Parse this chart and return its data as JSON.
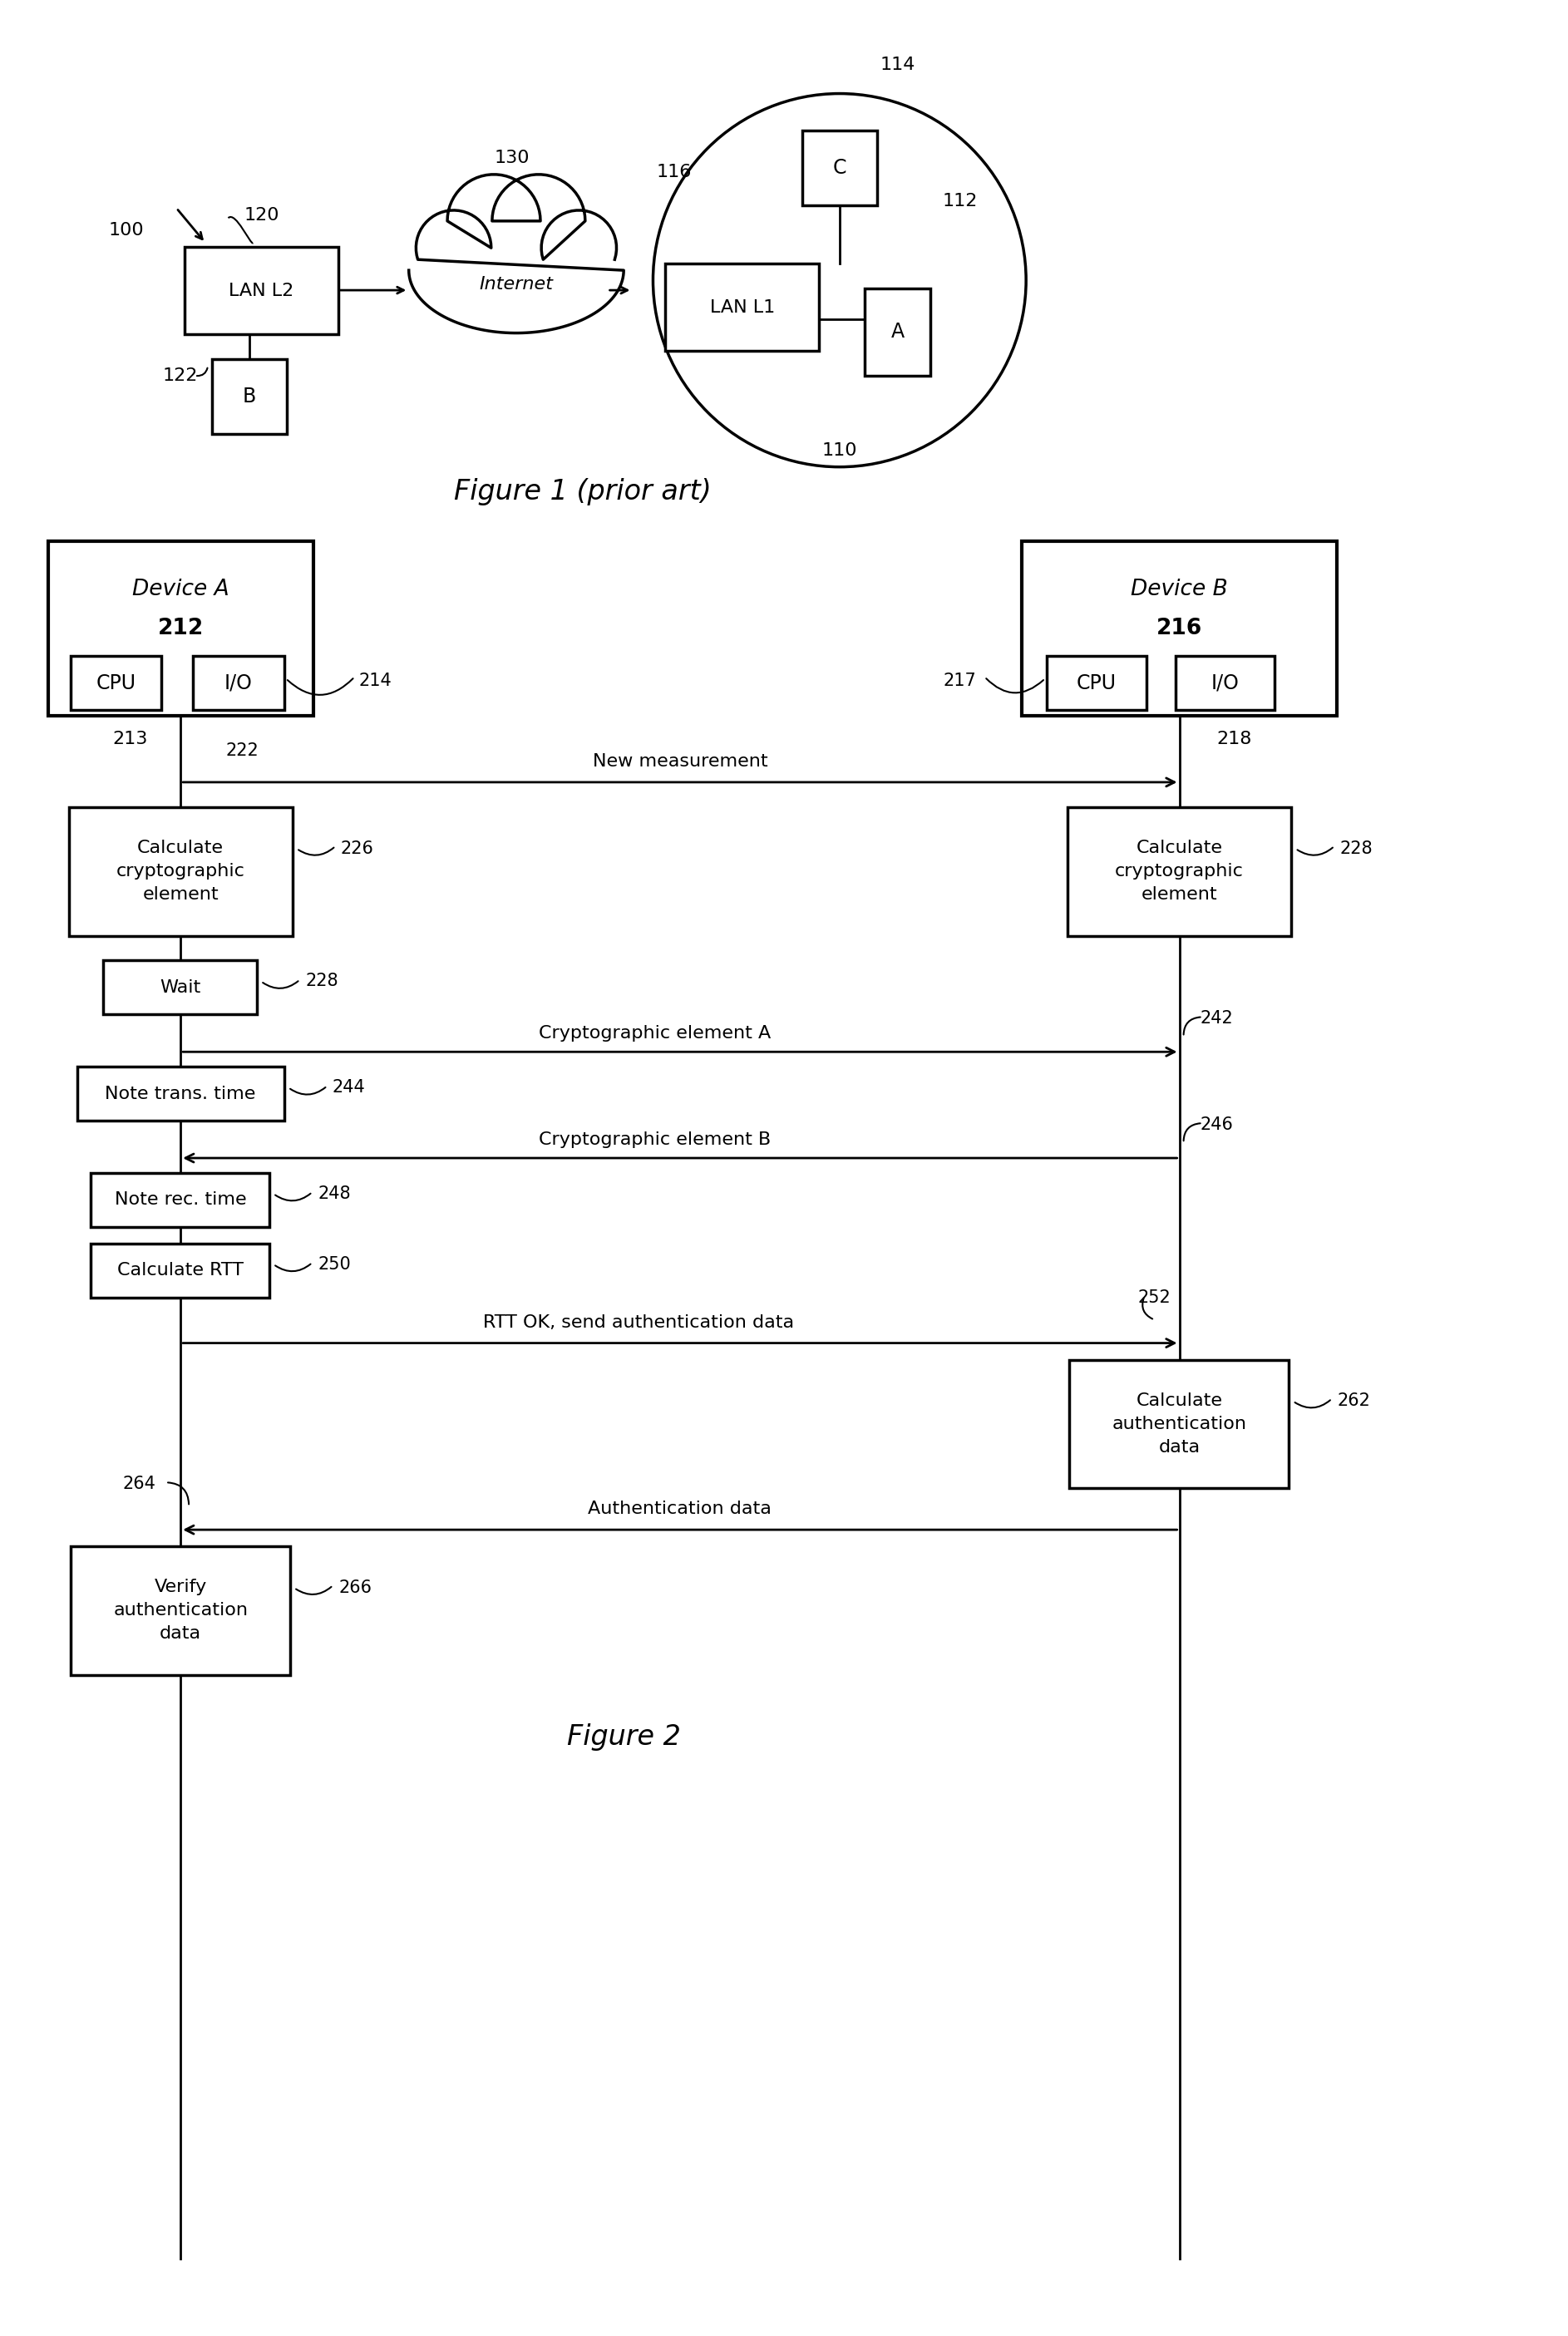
{
  "fig_width": 18.86,
  "fig_height": 28.1,
  "bg_color": "#ffffff",
  "fig1": {
    "title": "Figure 1 (prior art)",
    "label_100": "100",
    "label_120": "120",
    "label_122": "122",
    "label_130": "130",
    "label_116": "116",
    "label_114": "114",
    "label_112": "112",
    "label_110": "110",
    "lan_l2_text": "LAN L2",
    "internet_text": "Internet",
    "lan_l1_text": "LAN L1",
    "node_b_text": "B",
    "node_c_text": "C",
    "node_a_text": "A"
  },
  "fig2": {
    "title": "Figure 2",
    "device_a_title": "Device A",
    "device_a_num": "212",
    "device_b_title": "Device B",
    "device_b_num": "216",
    "cpu_text": "CPU",
    "io_text": "I/O",
    "label_213": "213",
    "label_214": "214",
    "label_217": "217",
    "label_218": "218",
    "label_222": "222",
    "msg_new_meas": "New measurement",
    "label_226": "226",
    "box_calc_crypto": "Calculate\ncryptographic\nelement",
    "label_228_wait": "228",
    "label_228_b": "228",
    "box_wait": "Wait",
    "label_242": "242",
    "msg_crypto_a": "Cryptographic element A",
    "label_244": "244",
    "box_note_trans": "Note trans. time",
    "label_246": "246",
    "msg_crypto_b": "Cryptographic element B",
    "label_248": "248",
    "box_note_rec": "Note rec. time",
    "label_250": "250",
    "box_calc_rtt": "Calculate RTT",
    "label_252": "252",
    "msg_rtt_ok": "RTT OK, send authentication data",
    "label_262": "262",
    "box_calc_auth": "Calculate\nauthentication\ndata",
    "label_264": "264",
    "msg_auth_data": "Authentication data",
    "label_266": "266",
    "box_verify_auth": "Verify\nauthentication\ndata"
  }
}
